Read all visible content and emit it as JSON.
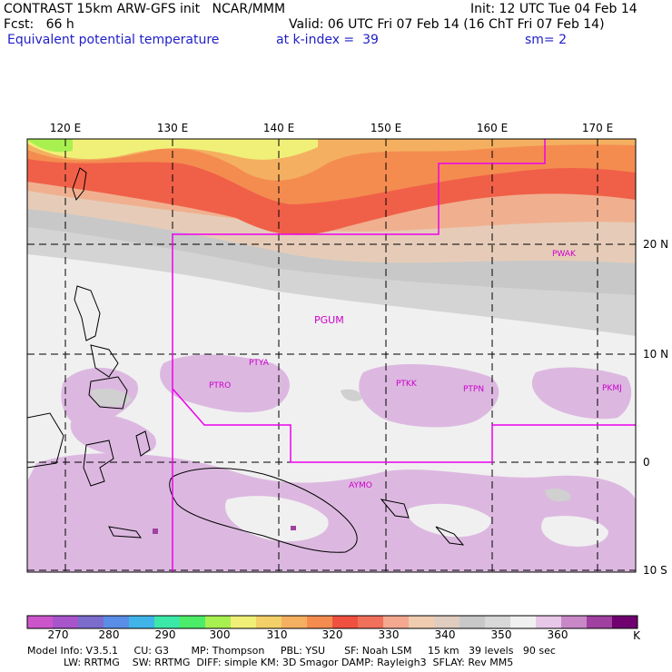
{
  "header": {
    "model_line": "CONTRAST 15km ARW-GFS init   NCAR/MMM",
    "init_line": "Init: 12 UTC Tue 04 Feb 14",
    "fcst_line": "Fcst:   66 h",
    "valid_line": "Valid: 06 UTC Fri 07 Feb 14 (16 ChT Fri 07 Feb 14)",
    "field_name": "Equivalent potential temperature",
    "level_label": "at k-index =",
    "level_value": "39",
    "smooth_label": "sm=",
    "smooth_value": "2"
  },
  "map": {
    "lon_labels": [
      "120 E",
      "130 E",
      "140 E",
      "150 E",
      "160 E",
      "170 E"
    ],
    "lat_labels": [
      "20 N",
      "10 N",
      "0",
      "10 S"
    ],
    "stations": [
      {
        "id": "PWAK",
        "label": "PWAK"
      },
      {
        "id": "PGUM",
        "label": "PGUM"
      },
      {
        "id": "PTYA",
        "label": "PTYA"
      },
      {
        "id": "PTRO",
        "label": "PTRO"
      },
      {
        "id": "PTKK",
        "label": "PTKK"
      },
      {
        "id": "PTPN",
        "label": "PTPN"
      },
      {
        "id": "PKMJ",
        "label": "PKMJ"
      },
      {
        "id": "AYMO",
        "label": "AYMO"
      }
    ]
  },
  "colorbar": {
    "colors": [
      "#cc55cc",
      "#a855cc",
      "#7c6ccc",
      "#5a8ee6",
      "#40b4e8",
      "#3ce8a8",
      "#4cec68",
      "#a8f050",
      "#f0f078",
      "#f4d068",
      "#f4b060",
      "#f48c50",
      "#f05040",
      "#f0705c",
      "#f4a890",
      "#f0ccb0",
      "#e0cdc0",
      "#c8c8c8",
      "#d8d8d8",
      "#f0f0f0",
      "#e8c8e8",
      "#c888c8",
      "#a040a0",
      "#700070"
    ],
    "tick_labels": [
      "270",
      "280",
      "290",
      "300",
      "310",
      "320",
      "330",
      "340",
      "350",
      "360"
    ],
    "unit": "K"
  },
  "model_info": {
    "line1": "Model Info: V3.5.1     CU: G3       MP: Thompson     PBL: YSU      SF: Noah LSM     15 km   39 levels   90 sec",
    "line2": "LW: RRTMG    SW: RRTMG  DIFF: simple KM: 3D Smagor DAMP: Rayleigh3  SFLAY: Rev MM5"
  }
}
